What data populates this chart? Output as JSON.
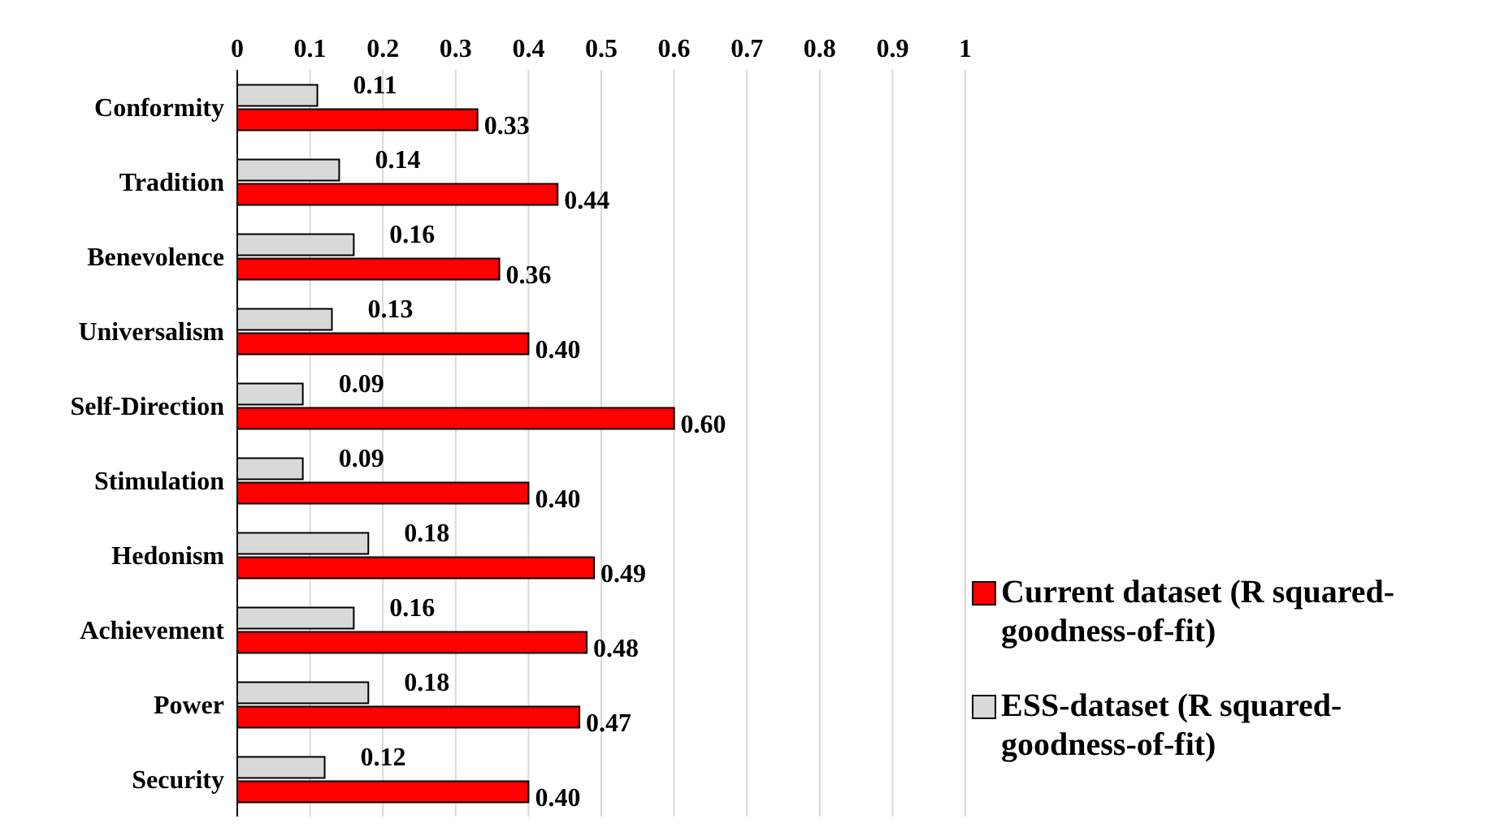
{
  "chart_data": {
    "type": "bar",
    "orientation": "horizontal",
    "categories": [
      "Conformity",
      "Tradition",
      "Benevolence",
      "Universalism",
      "Self-Direction",
      "Stimulation",
      "Hedonism",
      "Achievement",
      "Power",
      "Security"
    ],
    "series": [
      {
        "name": "ESS-dataset (R squared-goodness-of-fit)",
        "color": "#d9d9d9",
        "values": [
          0.11,
          0.14,
          0.16,
          0.13,
          0.09,
          0.09,
          0.18,
          0.16,
          0.18,
          0.12
        ],
        "value_labels": [
          "0.11",
          "0.14",
          "0.16",
          "0.13",
          "0.09",
          "0.09",
          "0.18",
          "0.16",
          "0.18",
          "0.12"
        ]
      },
      {
        "name": "Current dataset (R squared-goodness-of-fit)",
        "color": "#ff0000",
        "values": [
          0.33,
          0.44,
          0.36,
          0.4,
          0.6,
          0.4,
          0.49,
          0.48,
          0.47,
          0.4
        ],
        "value_labels": [
          "0.33",
          "0.44",
          "0.36",
          "0.40",
          "0.60",
          "0.40",
          "0.49",
          "0.48",
          "0.47",
          "0.40"
        ]
      }
    ],
    "xlim": [
      0,
      1
    ],
    "xticks": [
      0,
      0.1,
      0.2,
      0.3,
      0.4,
      0.5,
      0.6,
      0.7,
      0.8,
      0.9,
      1
    ],
    "grid": "x",
    "legend": "bottom right"
  }
}
